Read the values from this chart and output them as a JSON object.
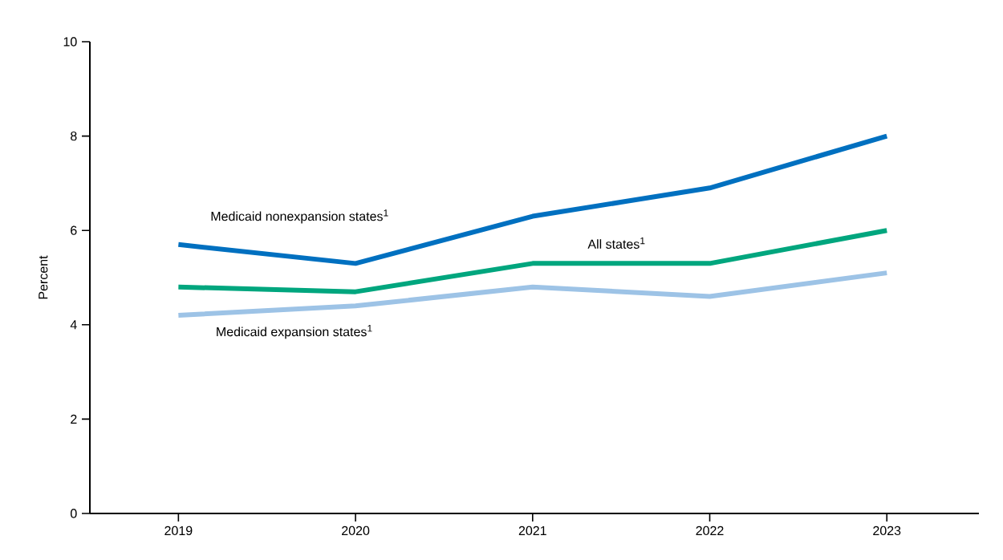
{
  "chart_data": {
    "type": "line",
    "ylabel": "Percent",
    "categories": [
      "2019",
      "2020",
      "2021",
      "2022",
      "2023"
    ],
    "series": [
      {
        "name": "Medicaid nonexpansion states$^{1}$",
        "color": "#0070c0",
        "values": [
          5.7,
          5.3,
          6.3,
          6.9,
          8.0
        ]
      },
      {
        "name": "All states$^{1}$",
        "color": "#00a67e",
        "values": [
          4.8,
          4.7,
          5.3,
          5.3,
          6.0
        ]
      },
      {
        "name": "Medicaid expansion states$^{1}$",
        "color": "#9dc3e6",
        "values": [
          4.2,
          4.4,
          4.8,
          4.6,
          5.1
        ]
      }
    ],
    "ylim": [
      0,
      10
    ],
    "yticks": [
      0,
      2,
      4,
      6,
      8,
      10
    ],
    "grid": false,
    "legend": false,
    "marker": "none",
    "line_style": "solid"
  }
}
